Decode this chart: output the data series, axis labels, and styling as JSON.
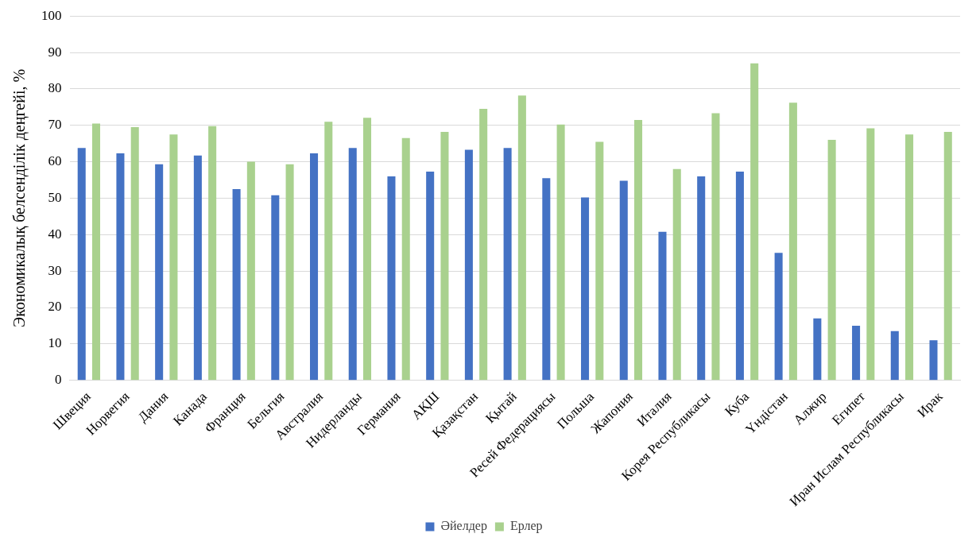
{
  "chart_data": {
    "type": "bar",
    "ylabel": "Экономикалық белсенділік деңгейі, %",
    "categories": [
      "Швеция",
      "Норвегия",
      "Дания",
      "Канада",
      "Франция",
      "Бельгия",
      "Австралия",
      "Нидерланды",
      "Германия",
      "АҚШ",
      "Қазақстан",
      "Қытай",
      "Ресей Федерациясы",
      "Польша",
      "Жапония",
      "Италия",
      "Корея Республикасы",
      "Куба",
      "Үндістан",
      "Алжир",
      "Египет",
      "Иран Ислам Республикасы",
      "Ирак"
    ],
    "series": [
      {
        "name": "Әйелдер",
        "color": "#4472c4",
        "values": [
          63.8,
          62.3,
          59.3,
          61.7,
          52.5,
          50.8,
          62.3,
          63.8,
          56,
          57.3,
          63.3,
          63.8,
          55.5,
          50.2,
          54.8,
          40.8,
          56,
          57.3,
          35,
          17,
          15,
          13.5,
          11
        ]
      },
      {
        "name": "Ерлер",
        "color": "#a9d18e",
        "values": [
          70.5,
          69.5,
          67.5,
          69.8,
          60,
          59.3,
          71,
          72.1,
          66.5,
          68.2,
          74.5,
          78.2,
          70.2,
          65.5,
          71.5,
          58,
          73.3,
          87,
          76.2,
          66,
          69.2,
          67.5,
          68.2
        ]
      }
    ],
    "ylim": [
      0,
      100
    ],
    "yticks": [
      0,
      10,
      20,
      30,
      40,
      50,
      60,
      70,
      80,
      90,
      100
    ],
    "grid": "y",
    "legend": "bottom"
  }
}
